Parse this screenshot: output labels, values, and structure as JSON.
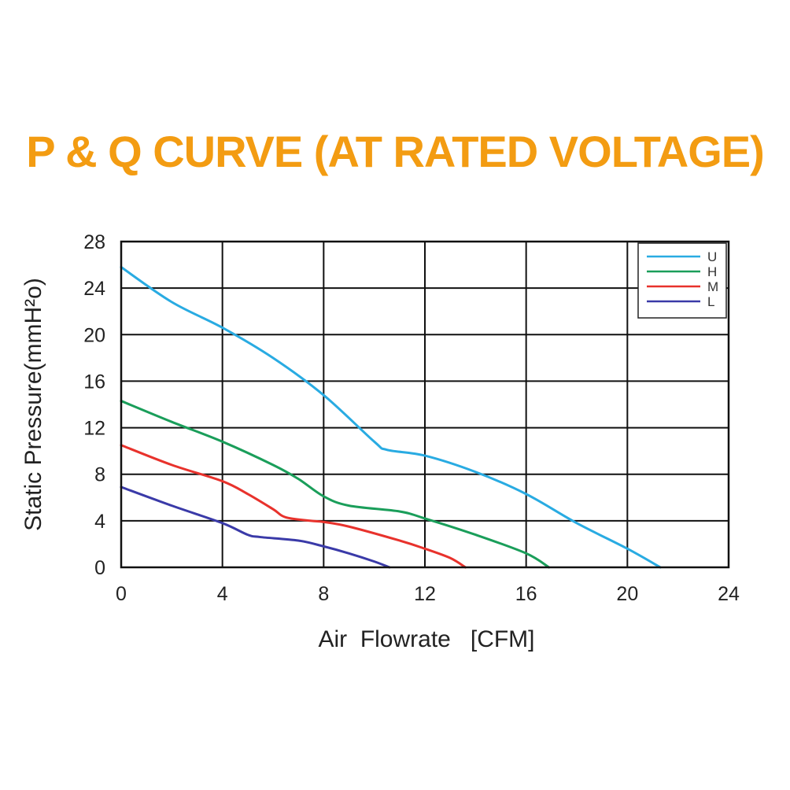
{
  "chart_data": {
    "type": "line",
    "title": "P & Q CURVE (AT RATED VOLTAGE)",
    "xlabel": "Air  Flowrate   [CFM]",
    "ylabel": "Static Pressure(mmH²o)",
    "xlim": [
      0,
      24
    ],
    "ylim": [
      0,
      28
    ],
    "xticks": [
      "0",
      "4",
      "8",
      "12",
      "16",
      "20",
      "24"
    ],
    "yticks": [
      "0",
      "4",
      "8",
      "12",
      "16",
      "20",
      "24",
      "28"
    ],
    "grid": true,
    "legend_position": "top-right",
    "series": [
      {
        "name": "U",
        "color": "#29abe2",
        "points": [
          [
            0,
            25.8
          ],
          [
            2,
            22.8
          ],
          [
            4,
            20.6
          ],
          [
            6,
            18
          ],
          [
            8,
            14.8
          ],
          [
            10,
            10.8
          ],
          [
            10.5,
            10.1
          ],
          [
            12,
            9.6
          ],
          [
            14,
            8.2
          ],
          [
            16,
            6.3
          ],
          [
            18,
            3.8
          ],
          [
            20,
            1.6
          ],
          [
            21.3,
            0
          ]
        ]
      },
      {
        "name": "H",
        "color": "#1a9e5a",
        "points": [
          [
            0,
            14.3
          ],
          [
            2,
            12.5
          ],
          [
            4,
            10.8
          ],
          [
            6,
            8.8
          ],
          [
            7,
            7.6
          ],
          [
            8,
            6.1
          ],
          [
            9,
            5.3
          ],
          [
            11,
            4.8
          ],
          [
            12,
            4.2
          ],
          [
            14,
            2.8
          ],
          [
            16,
            1.2
          ],
          [
            16.9,
            0
          ]
        ]
      },
      {
        "name": "M",
        "color": "#e8322c",
        "points": [
          [
            0,
            10.5
          ],
          [
            2,
            8.8
          ],
          [
            4,
            7.4
          ],
          [
            5,
            6.3
          ],
          [
            6,
            5
          ],
          [
            6.5,
            4.3
          ],
          [
            7.5,
            4
          ],
          [
            8,
            3.9
          ],
          [
            9,
            3.5
          ],
          [
            11,
            2.3
          ],
          [
            12,
            1.6
          ],
          [
            13,
            0.8
          ],
          [
            13.6,
            0
          ]
        ]
      },
      {
        "name": "L",
        "color": "#3a3aa8",
        "points": [
          [
            0,
            6.9
          ],
          [
            2,
            5.3
          ],
          [
            4,
            3.8
          ],
          [
            5,
            2.8
          ],
          [
            5.5,
            2.6
          ],
          [
            7,
            2.3
          ],
          [
            8,
            1.8
          ],
          [
            9,
            1.2
          ],
          [
            10,
            0.5
          ],
          [
            10.6,
            0
          ]
        ]
      }
    ]
  }
}
